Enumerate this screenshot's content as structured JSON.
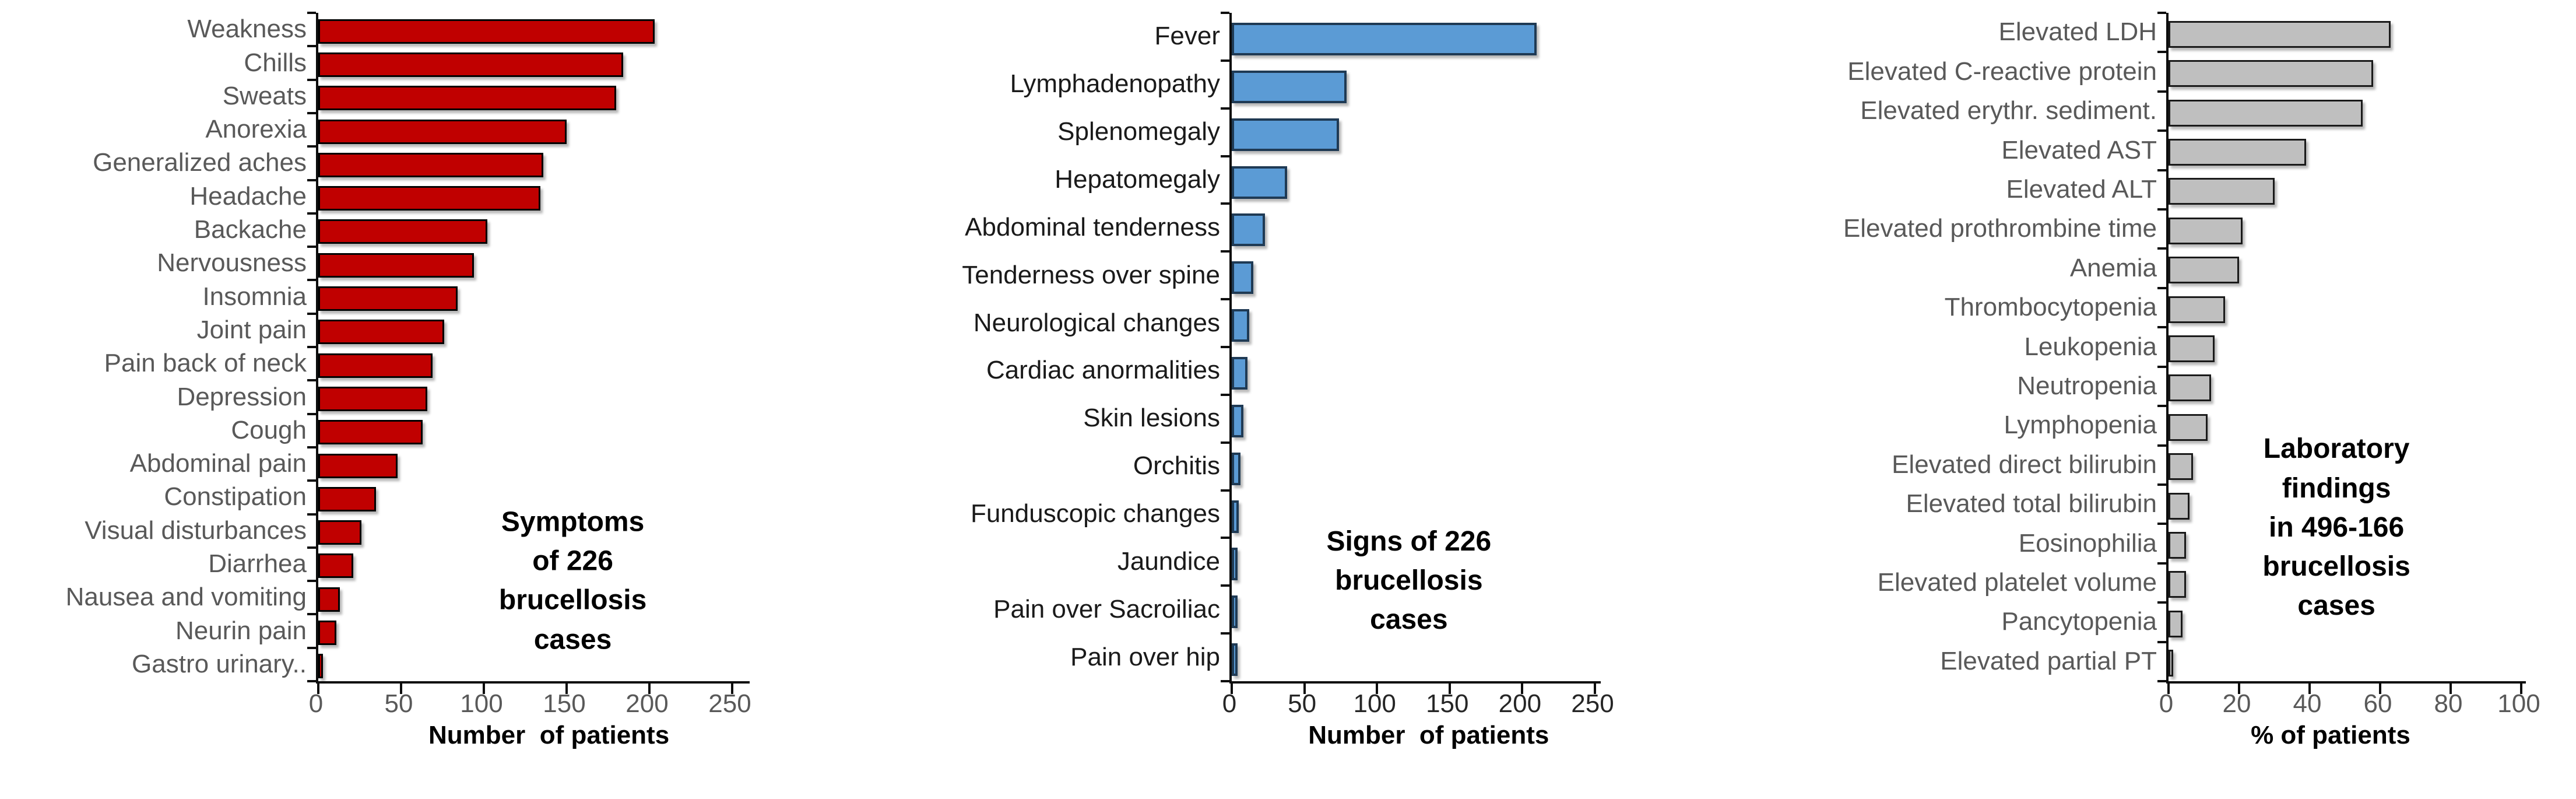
{
  "figure": {
    "background": "#ffffff",
    "description_units_left_middle": "Number  of patients",
    "description_units_right": "% of patients"
  },
  "chart_data": [
    {
      "type": "bar",
      "orientation": "horizontal",
      "title": "Symptoms of 226\nbrucellosis cases",
      "xlabel": "Number  of patients",
      "xlim": [
        0,
        250
      ],
      "xticks": [
        0,
        50,
        100,
        150,
        200,
        250
      ],
      "grid": false,
      "bar_color": "#C00000",
      "bar_border": "#000000",
      "label_color": "#595959",
      "tick_color": "#595959",
      "categories": [
        "Weakness",
        "Chills",
        "Sweats",
        "Anorexia",
        "Generalized aches",
        "Headache",
        "Backache",
        "Nervousness",
        "Insomnia",
        "Joint pain",
        "Pain back of neck",
        "Depression",
        "Cough",
        "Abdominal pain",
        "Constipation",
        "Visual disturbances",
        "Diarrhea",
        "Nausea and vomiting",
        "Neurin pain",
        "Gastro urinary.."
      ],
      "values": [
        203,
        184,
        180,
        150,
        136,
        134,
        102,
        94,
        84,
        76,
        69,
        66,
        63,
        48,
        35,
        26,
        21,
        13,
        11,
        2
      ]
    },
    {
      "type": "bar",
      "orientation": "horizontal",
      "title": "Signs of 226\nbrucellosis cases",
      "xlabel": "Number  of patients",
      "xlim": [
        0,
        250
      ],
      "xticks": [
        0,
        50,
        100,
        150,
        200,
        250
      ],
      "grid": false,
      "bar_color": "#5B9BD5",
      "bar_border": "#1F3A54",
      "label_color": "#1a1a1a",
      "tick_color": "#262626",
      "categories": [
        "Fever",
        "Lymphadenopathy",
        "Splenomegaly",
        "Hepatomegaly",
        "Abdominal tenderness",
        "Tenderness over spine",
        "Neurological changes",
        "Cardiac anormalities",
        "Skin lesions",
        "Orchitis",
        "Funduscopic changes",
        "Jaundice",
        "Pain over Sacroiliac",
        "Pain over hip"
      ],
      "values": [
        210,
        79,
        74,
        38,
        23,
        15,
        12,
        11,
        8,
        6,
        5,
        4,
        2,
        1.5
      ]
    },
    {
      "type": "bar",
      "orientation": "horizontal",
      "title": "Laboratory findings\nin 496-166\nbrucellosis cases",
      "xlabel": "% of patients",
      "xlim": [
        0,
        100
      ],
      "xticks": [
        0,
        20,
        40,
        60,
        80,
        100
      ],
      "grid": false,
      "bar_color": "#BFBFBF",
      "bar_border": "#1a1a1a",
      "label_color": "#595959",
      "tick_color": "#595959",
      "categories": [
        "Elevated LDH",
        "Elevated C-reactive protein",
        "Elevated erythr. sediment.",
        "Elevated AST",
        "Elevated ALT",
        "Elevated prothrombine time",
        "Anemia",
        "Thrombocytopenia",
        "Leukopenia",
        "Neutropenia",
        "Lymphopenia",
        "Elevated direct bilirubin",
        "Elevated total bilirubin",
        "Eosinophilia",
        "Elevated platelet volume",
        "Pancytopenia",
        "Elevated partial PT"
      ],
      "values": [
        63,
        58,
        55,
        39,
        30,
        21,
        20,
        16,
        13,
        12,
        11,
        7,
        6,
        5,
        5,
        4,
        1
      ]
    }
  ]
}
